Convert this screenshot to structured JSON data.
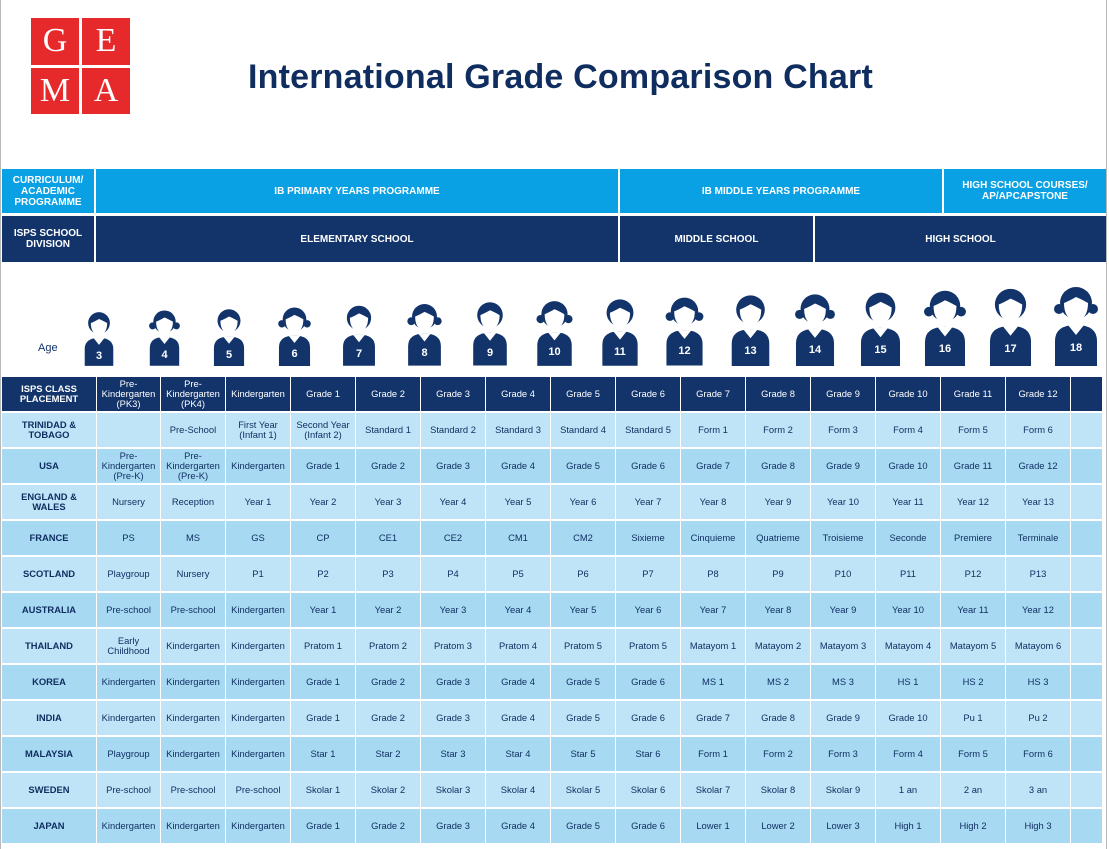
{
  "logo": {
    "letters": [
      "G",
      "E",
      "M",
      "A"
    ]
  },
  "title": "International Grade Comparison Chart",
  "programme_row": {
    "label": "CURRICULUM/ ACADEMIC PROGRAMME",
    "segments": [
      "IB PRIMARY YEARS PROGRAMME",
      "IB MIDDLE YEARS PROGRAMME",
      "HIGH SCHOOL COURSES/ AP/APCAPSTONE"
    ]
  },
  "division_row": {
    "label": "ISPS SCHOOL DIVISION",
    "segments": [
      "ELEMENTARY SCHOOL",
      "MIDDLE SCHOOL",
      "HIGH SCHOOL"
    ]
  },
  "ages": {
    "label": "Age",
    "values": [
      "3",
      "4",
      "5",
      "6",
      "7",
      "8",
      "9",
      "10",
      "11",
      "12",
      "13",
      "14",
      "15",
      "16",
      "17",
      "18"
    ],
    "icon": "student-avatar-icon"
  },
  "table": {
    "header": [
      "ISPS CLASS PLACEMENT",
      "Pre-Kindergarten (PK3)",
      "Pre-Kindergarten (PK4)",
      "Kindergarten",
      "Grade 1",
      "Grade 2",
      "Grade 3",
      "Grade 4",
      "Grade 5",
      "Grade 6",
      "Grade 7",
      "Grade 8",
      "Grade 9",
      "Grade 10",
      "Grade 11",
      "Grade 12",
      ""
    ],
    "rows": [
      [
        "TRINIDAD & TOBAGO",
        "",
        "Pre-School",
        "First Year (Infant 1)",
        "Second Year (Infant 2)",
        "Standard 1",
        "Standard 2",
        "Standard 3",
        "Standard 4",
        "Standard 5",
        "Form 1",
        "Form 2",
        "Form 3",
        "Form 4",
        "Form 5",
        "Form 6",
        ""
      ],
      [
        "USA",
        "Pre-Kindergarten (Pre-K)",
        "Pre-Kindergarten (Pre-K)",
        "Kindergarten",
        "Grade 1",
        "Grade 2",
        "Grade 3",
        "Grade 4",
        "Grade 5",
        "Grade 6",
        "Grade 7",
        "Grade 8",
        "Grade 9",
        "Grade 10",
        "Grade 11",
        "Grade 12",
        ""
      ],
      [
        "ENGLAND & WALES",
        "Nursery",
        "Reception",
        "Year 1",
        "Year 2",
        "Year 3",
        "Year 4",
        "Year 5",
        "Year 6",
        "Year 7",
        "Year 8",
        "Year 9",
        "Year 10",
        "Year 11",
        "Year 12",
        "Year 13",
        ""
      ],
      [
        "FRANCE",
        "PS",
        "MS",
        "GS",
        "CP",
        "CE1",
        "CE2",
        "CM1",
        "CM2",
        "Sixieme",
        "Cinquieme",
        "Quatrieme",
        "Troisieme",
        "Seconde",
        "Premiere",
        "Terminale",
        ""
      ],
      [
        "SCOTLAND",
        "Playgroup",
        "Nursery",
        "P1",
        "P2",
        "P3",
        "P4",
        "P5",
        "P6",
        "P7",
        "P8",
        "P9",
        "P10",
        "P11",
        "P12",
        "P13",
        ""
      ],
      [
        "AUSTRALIA",
        "Pre-school",
        "Pre-school",
        "Kindergarten",
        "Year 1",
        "Year 2",
        "Year 3",
        "Year 4",
        "Year 5",
        "Year 6",
        "Year 7",
        "Year 8",
        "Year 9",
        "Year 10",
        "Year 11",
        "Year 12",
        ""
      ],
      [
        "THAILAND",
        "Early Childhood",
        "Kindergarten",
        "Kindergarten",
        "Pratom 1",
        "Pratom 2",
        "Pratom 3",
        "Pratom 4",
        "Pratom 5",
        "Pratom 5",
        "Matayom 1",
        "Matayom 2",
        "Matayom 3",
        "Matayom 4",
        "Matayom 5",
        "Matayom 6",
        ""
      ],
      [
        "KOREA",
        "Kindergarten",
        "Kindergarten",
        "Kindergarten",
        "Grade 1",
        "Grade 2",
        "Grade 3",
        "Grade 4",
        "Grade 5",
        "Grade 6",
        "MS 1",
        "MS 2",
        "MS 3",
        "HS 1",
        "HS 2",
        "HS 3",
        ""
      ],
      [
        "INDIA",
        "Kindergarten",
        "Kindergarten",
        "Kindergarten",
        "Grade 1",
        "Grade 2",
        "Grade 3",
        "Grade 4",
        "Grade 5",
        "Grade 6",
        "Grade 7",
        "Grade 8",
        "Grade 9",
        "Grade 10",
        "Pu 1",
        "Pu 2",
        ""
      ],
      [
        "MALAYSIA",
        "Playgroup",
        "Kindergarten",
        "Kindergarten",
        "Star 1",
        "Star 2",
        "Star 3",
        "Star 4",
        "Star 5",
        "Star 6",
        "Form 1",
        "Form 2",
        "Form 3",
        "Form 4",
        "Form 5",
        "Form 6",
        ""
      ],
      [
        "SWEDEN",
        "Pre-school",
        "Pre-school",
        "Pre-school",
        "Skolar 1",
        "Skolar 2",
        "Skolar 3",
        "Skolar 4",
        "Skolar 5",
        "Skolar 6",
        "Skolar 7",
        "Skolar 8",
        "Skolar 9",
        "1 an",
        "2 an",
        "3 an",
        ""
      ],
      [
        "JAPAN",
        "Kindergarten",
        "Kindergarten",
        "Kindergarten",
        "Grade 1",
        "Grade 2",
        "Grade 3",
        "Grade 4",
        "Grade 5",
        "Grade 6",
        "Lower 1",
        "Lower 2",
        "Lower 3",
        "High 1",
        "High 2",
        "High 3",
        ""
      ]
    ]
  }
}
